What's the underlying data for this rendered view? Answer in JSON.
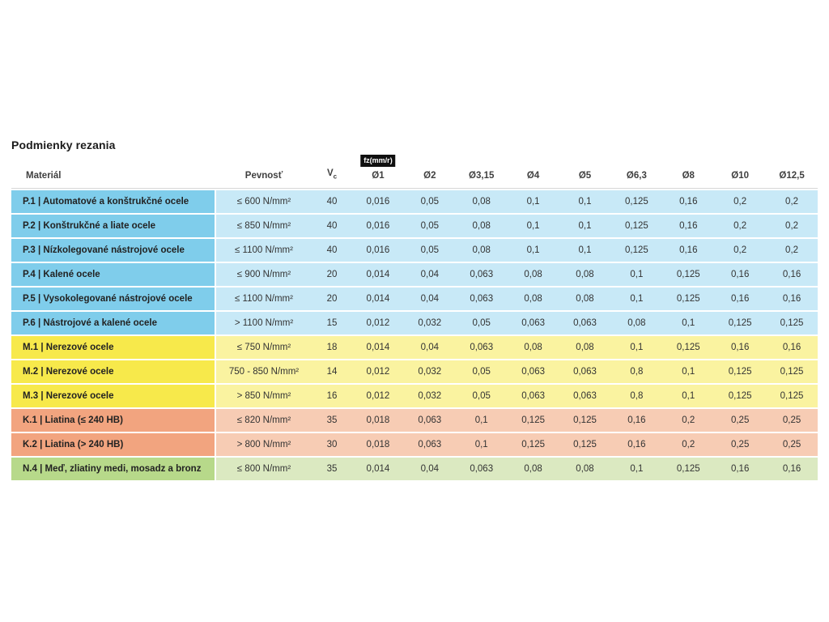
{
  "page": {
    "title": "Podmienky rezania"
  },
  "table": {
    "headers": {
      "material": "Materiál",
      "strength": "Pevnosť",
      "vc_main": "V",
      "vc_sub": "c",
      "fz_badge": "fz(mm/r)",
      "diameters": [
        "Ø1",
        "Ø2",
        "Ø3,15",
        "Ø4",
        "Ø5",
        "Ø6,3",
        "Ø8",
        "Ø10",
        "Ø12,5"
      ]
    },
    "rows": [
      {
        "group": "steel-blue",
        "material": "P.1 | Automatové a konštrukčné ocele",
        "strength": "≤ 600 N/mm²",
        "vc": "40",
        "fz": [
          "0,016",
          "0,05",
          "0,08",
          "0,1",
          "0,1",
          "0,125",
          "0,16",
          "0,2",
          "0,2"
        ]
      },
      {
        "group": "steel-blue",
        "material": "P.2 | Konštrukčné a liate ocele",
        "strength": "≤ 850 N/mm²",
        "vc": "40",
        "fz": [
          "0,016",
          "0,05",
          "0,08",
          "0,1",
          "0,1",
          "0,125",
          "0,16",
          "0,2",
          "0,2"
        ]
      },
      {
        "group": "steel-blue",
        "material": "P.3 | Nízkolegované nástrojové ocele",
        "strength": "≤ 1100 N/mm²",
        "vc": "40",
        "fz": [
          "0,016",
          "0,05",
          "0,08",
          "0,1",
          "0,1",
          "0,125",
          "0,16",
          "0,2",
          "0,2"
        ]
      },
      {
        "group": "steel-blue",
        "material": "P.4 | Kalené ocele",
        "strength": "≤ 900 N/mm²",
        "vc": "20",
        "fz": [
          "0,014",
          "0,04",
          "0,063",
          "0,08",
          "0,08",
          "0,1",
          "0,125",
          "0,16",
          "0,16"
        ]
      },
      {
        "group": "steel-blue",
        "material": "P.5 | Vysokolegované nástrojové ocele",
        "strength": "≤ 1100 N/mm²",
        "vc": "20",
        "fz": [
          "0,014",
          "0,04",
          "0,063",
          "0,08",
          "0,08",
          "0,1",
          "0,125",
          "0,16",
          "0,16"
        ]
      },
      {
        "group": "steel-blue",
        "material": "P.6 | Nástrojové a kalené ocele",
        "strength": "> 1100 N/mm²",
        "vc": "15",
        "fz": [
          "0,012",
          "0,032",
          "0,05",
          "0,063",
          "0,063",
          "0,08",
          "0,1",
          "0,125",
          "0,125"
        ]
      },
      {
        "group": "stainless-yellow",
        "material": "M.1 | Nerezové ocele",
        "strength": "≤ 750 N/mm²",
        "vc": "18",
        "fz": [
          "0,014",
          "0,04",
          "0,063",
          "0,08",
          "0,08",
          "0,1",
          "0,125",
          "0,16",
          "0,16"
        ]
      },
      {
        "group": "stainless-yellow",
        "material": "M.2 | Nerezové ocele",
        "strength": "750 - 850 N/mm²",
        "vc": "14",
        "fz": [
          "0,012",
          "0,032",
          "0,05",
          "0,063",
          "0,063",
          "0,8",
          "0,1",
          "0,125",
          "0,125"
        ]
      },
      {
        "group": "stainless-yellow",
        "material": "M.3 | Nerezové ocele",
        "strength": "> 850 N/mm²",
        "vc": "16",
        "fz": [
          "0,012",
          "0,032",
          "0,05",
          "0,063",
          "0,063",
          "0,8",
          "0,1",
          "0,125",
          "0,125"
        ]
      },
      {
        "group": "castiron-orange",
        "material": "K.1 | Liatina (≤ 240 HB)",
        "strength": "≤ 820 N/mm²",
        "vc": "35",
        "fz": [
          "0,018",
          "0,063",
          "0,1",
          "0,125",
          "0,125",
          "0,16",
          "0,2",
          "0,25",
          "0,25"
        ]
      },
      {
        "group": "castiron-orange",
        "material": "K.2 | Liatina (> 240 HB)",
        "strength": "> 800 N/mm²",
        "vc": "30",
        "fz": [
          "0,018",
          "0,063",
          "0,1",
          "0,125",
          "0,125",
          "0,16",
          "0,2",
          "0,25",
          "0,25"
        ]
      },
      {
        "group": "copper-green",
        "material": "N.4 | Meď, zliatiny medi, mosadz a bronz",
        "strength": "≤ 800 N/mm²",
        "vc": "35",
        "fz": [
          "0,014",
          "0,04",
          "0,063",
          "0,08",
          "0,08",
          "0,1",
          "0,125",
          "0,16",
          "0,16"
        ]
      }
    ]
  },
  "colors": {
    "steel-blue": {
      "label": "#7fcdeb",
      "cells": "#c8e9f7"
    },
    "stainless-yellow": {
      "label": "#f7e94b",
      "cells": "#faf3a0"
    },
    "castiron-orange": {
      "label": "#f2a47f",
      "cells": "#f7ccb4"
    },
    "copper-green": {
      "label": "#b7d98a",
      "cells": "#dbe9c1"
    }
  }
}
